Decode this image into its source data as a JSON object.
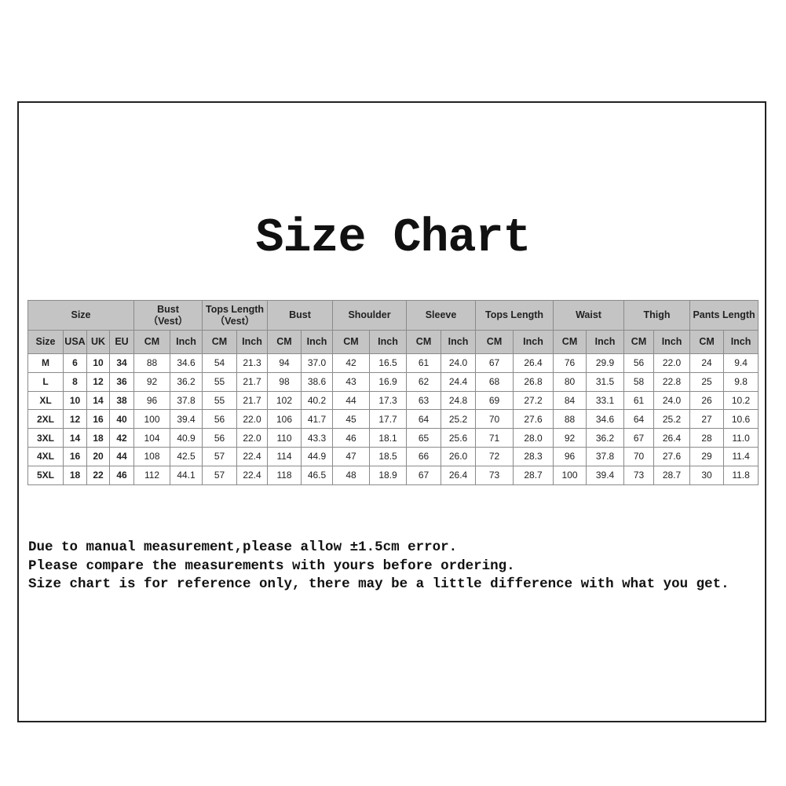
{
  "title": "Size Chart",
  "table": {
    "groups": [
      {
        "label": "Size",
        "span": 4
      },
      {
        "label": "Bust\n（Vest）",
        "span": 2
      },
      {
        "label": "Tops Length\n（Vest）",
        "span": 2
      },
      {
        "label": "Bust",
        "span": 2
      },
      {
        "label": "Shoulder",
        "span": 2
      },
      {
        "label": "Sleeve",
        "span": 2
      },
      {
        "label": "Tops Length",
        "span": 2
      },
      {
        "label": "Waist",
        "span": 2
      },
      {
        "label": "Thigh",
        "span": 2
      },
      {
        "label": "Pants Length",
        "span": 2
      }
    ],
    "subheaders": [
      "Size",
      "USA",
      "UK",
      "EU",
      "CM",
      "Inch",
      "CM",
      "Inch",
      "CM",
      "Inch",
      "CM",
      "Inch",
      "CM",
      "Inch",
      "CM",
      "Inch",
      "CM",
      "Inch",
      "CM",
      "Inch",
      "CM",
      "Inch"
    ],
    "rows": [
      [
        "M",
        "6",
        "10",
        "34",
        "88",
        "34.6",
        "54",
        "21.3",
        "94",
        "37.0",
        "42",
        "16.5",
        "61",
        "24.0",
        "67",
        "26.4",
        "76",
        "29.9",
        "56",
        "22.0",
        "24",
        "9.4"
      ],
      [
        "L",
        "8",
        "12",
        "36",
        "92",
        "36.2",
        "55",
        "21.7",
        "98",
        "38.6",
        "43",
        "16.9",
        "62",
        "24.4",
        "68",
        "26.8",
        "80",
        "31.5",
        "58",
        "22.8",
        "25",
        "9.8"
      ],
      [
        "XL",
        "10",
        "14",
        "38",
        "96",
        "37.8",
        "55",
        "21.7",
        "102",
        "40.2",
        "44",
        "17.3",
        "63",
        "24.8",
        "69",
        "27.2",
        "84",
        "33.1",
        "61",
        "24.0",
        "26",
        "10.2"
      ],
      [
        "2XL",
        "12",
        "16",
        "40",
        "100",
        "39.4",
        "56",
        "22.0",
        "106",
        "41.7",
        "45",
        "17.7",
        "64",
        "25.2",
        "70",
        "27.6",
        "88",
        "34.6",
        "64",
        "25.2",
        "27",
        "10.6"
      ],
      [
        "3XL",
        "14",
        "18",
        "42",
        "104",
        "40.9",
        "56",
        "22.0",
        "110",
        "43.3",
        "46",
        "18.1",
        "65",
        "25.6",
        "71",
        "28.0",
        "92",
        "36.2",
        "67",
        "26.4",
        "28",
        "11.0"
      ],
      [
        "4XL",
        "16",
        "20",
        "44",
        "108",
        "42.5",
        "57",
        "22.4",
        "114",
        "44.9",
        "47",
        "18.5",
        "66",
        "26.0",
        "72",
        "28.3",
        "96",
        "37.8",
        "70",
        "27.6",
        "29",
        "11.4"
      ],
      [
        "5XL",
        "18",
        "22",
        "46",
        "112",
        "44.1",
        "57",
        "22.4",
        "118",
        "46.5",
        "48",
        "18.9",
        "67",
        "26.4",
        "73",
        "28.7",
        "100",
        "39.4",
        "73",
        "28.7",
        "30",
        "11.8"
      ]
    ]
  },
  "notes": [
    "Due to manual measurement,please allow ±1.5cm error.",
    "Please compare the measurements with yours before ordering.",
    "Size chart is for reference only, there may be a little difference with what you get."
  ]
}
